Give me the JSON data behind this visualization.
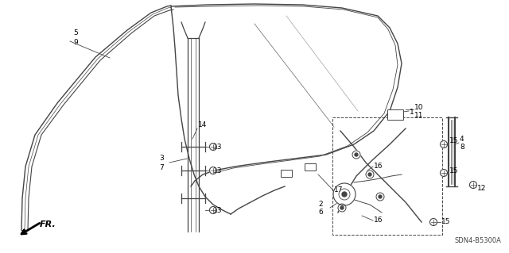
{
  "bg_color": "#ffffff",
  "diagram_code": "SDN4-B5300A",
  "fig_width": 6.4,
  "fig_height": 3.19,
  "dpi": 100,
  "line_color": "#444444",
  "label_color": "#000000",
  "label_fontsize": 6.5
}
